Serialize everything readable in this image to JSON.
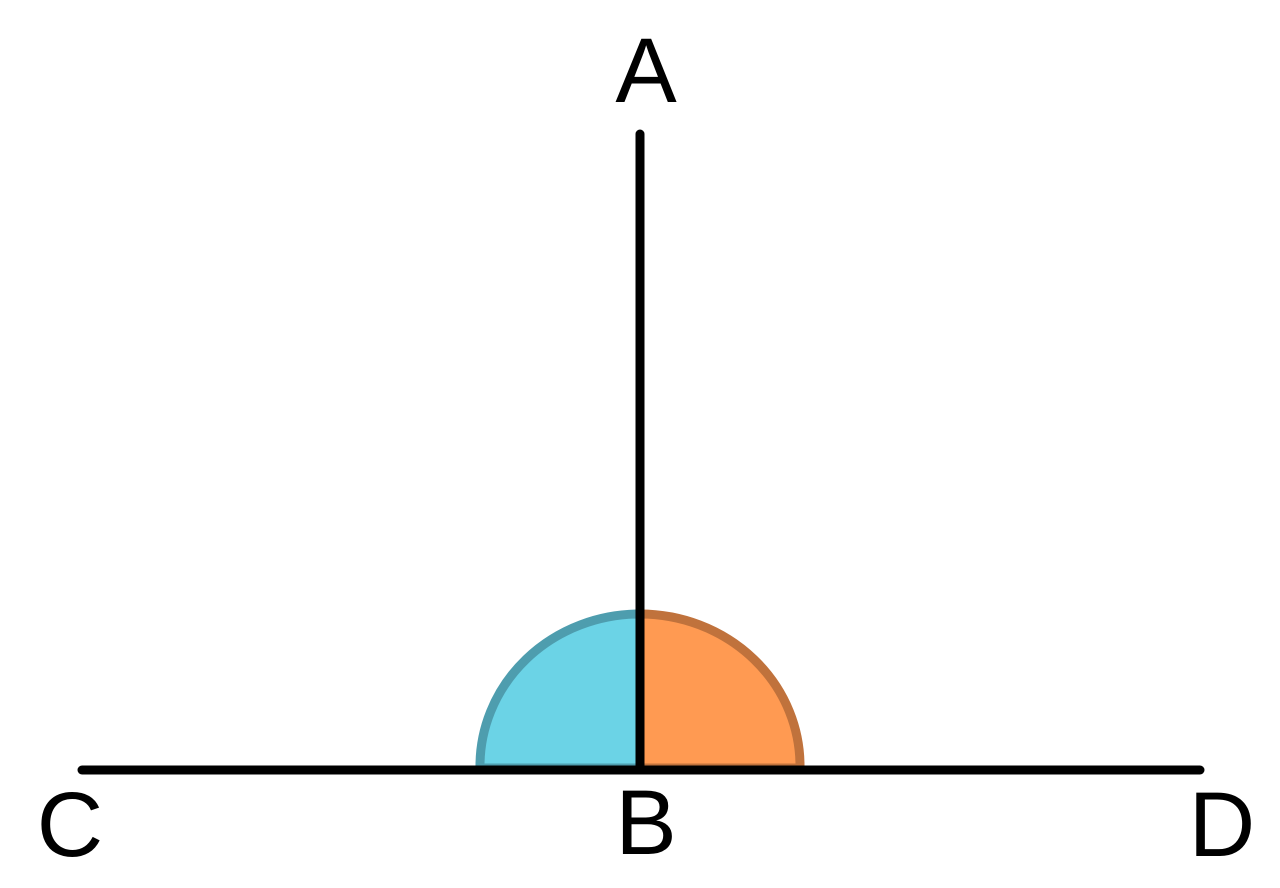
{
  "diagram": {
    "points": {
      "A": "A",
      "B": "B",
      "C": "C",
      "D": "D"
    },
    "segments": [
      {
        "from": "B",
        "to": "A"
      },
      {
        "from": "C",
        "to": "D"
      }
    ],
    "angles": [
      {
        "name": "CBA",
        "color": "#6BD3E6",
        "stroke": "#4E9DAE"
      },
      {
        "name": "ABD",
        "color": "#FF9A52",
        "stroke": "#C0723C"
      }
    ]
  }
}
